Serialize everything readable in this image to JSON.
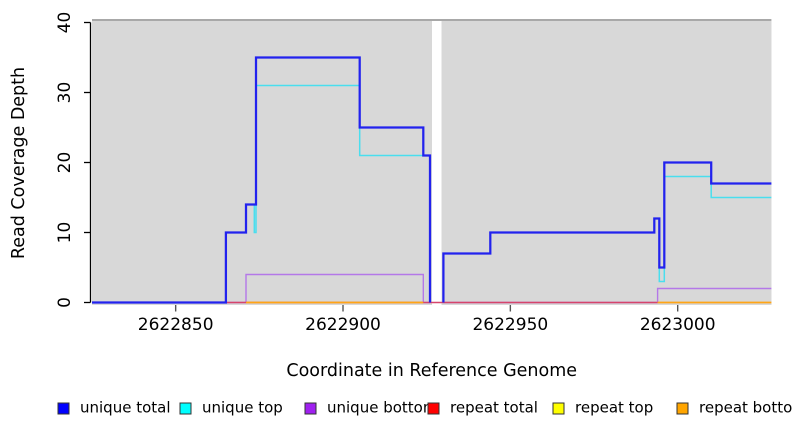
{
  "figure": {
    "background": "#FFFFFF"
  },
  "chart_data": {
    "type": "line",
    "subtype": "step-coverage-plot",
    "title": "",
    "xlabel": "Coordinate in Reference Genome",
    "ylabel": "Read Coverage Depth",
    "xlim": [
      2622825,
      2623028
    ],
    "ylim": [
      0,
      40
    ],
    "x_ticks": [
      2622850,
      2622900,
      2622950,
      2623000
    ],
    "y_ticks": [
      0,
      10,
      20,
      30,
      40
    ],
    "grid": false,
    "panel_background": "#D8D8D8",
    "panel_top_edge_color": "#A8A8A8",
    "gap": {
      "start": 2622926.6,
      "end": 2622929.4
    },
    "legend_position": "bottom",
    "series": [
      {
        "name": "unique total",
        "line_color": "#2222EE",
        "legend_color": "#0000FF",
        "line_width": 2.25,
        "segments": [
          [
            [
              2622825,
              0
            ],
            [
              2622865,
              0
            ],
            [
              2622865,
              10
            ],
            [
              2622871,
              10
            ],
            [
              2622871,
              14
            ],
            [
              2622874,
              14
            ],
            [
              2622874,
              35
            ],
            [
              2622905,
              35
            ],
            [
              2622905,
              25
            ],
            [
              2622924,
              25
            ],
            [
              2622924,
              21
            ],
            [
              2622926,
              21
            ],
            [
              2622926,
              0
            ]
          ],
          [
            [
              2622930,
              0
            ],
            [
              2622930,
              7
            ],
            [
              2622944,
              7
            ],
            [
              2622944,
              10
            ],
            [
              2622993,
              10
            ],
            [
              2622993,
              12
            ],
            [
              2622994.5,
              12
            ],
            [
              2622994.5,
              5
            ],
            [
              2622996,
              5
            ],
            [
              2622996,
              20
            ],
            [
              2623010,
              20
            ],
            [
              2623010,
              17
            ],
            [
              2623028,
              17
            ]
          ]
        ]
      },
      {
        "name": "unique top",
        "line_color": "#4ADEEE",
        "legend_color": "#00FFFF",
        "line_width": 1.5,
        "segments": [
          [
            [
              2622825,
              0
            ],
            [
              2622865,
              0
            ],
            [
              2622865,
              10
            ],
            [
              2622871,
              10
            ],
            [
              2622871,
              14
            ],
            [
              2622873.5,
              14
            ],
            [
              2622873.5,
              10
            ],
            [
              2622874,
              10
            ],
            [
              2622874,
              31
            ],
            [
              2622905,
              31
            ],
            [
              2622905,
              21
            ],
            [
              2622926,
              21
            ],
            [
              2622926,
              0
            ]
          ],
          [
            [
              2622930,
              0
            ],
            [
              2622930,
              7
            ],
            [
              2622944,
              7
            ],
            [
              2622944,
              10
            ],
            [
              2622993,
              10
            ],
            [
              2622993,
              12
            ],
            [
              2622994.5,
              12
            ],
            [
              2622994.5,
              3
            ],
            [
              2622996,
              3
            ],
            [
              2622996,
              18
            ],
            [
              2623010,
              18
            ],
            [
              2623010,
              15
            ],
            [
              2623028,
              15
            ]
          ]
        ]
      },
      {
        "name": "unique bottom",
        "line_color": "#B478E8",
        "legend_color": "#A020F0",
        "line_width": 1.4,
        "segments": [
          [
            [
              2622825,
              0
            ],
            [
              2622871,
              0
            ],
            [
              2622871,
              4
            ],
            [
              2622924,
              4
            ],
            [
              2622924,
              0
            ],
            [
              2622926,
              0
            ]
          ],
          [
            [
              2622930,
              0
            ],
            [
              2622994,
              0
            ],
            [
              2622994,
              2
            ],
            [
              2623028,
              2
            ]
          ]
        ]
      },
      {
        "name": "repeat total",
        "line_color": "#D6456B",
        "legend_color": "#FF0000",
        "line_width": 1.5,
        "segments": [
          [
            [
              2622865,
              0
            ],
            [
              2622994,
              0
            ]
          ]
        ]
      },
      {
        "name": "repeat top",
        "line_color": "#FFFF00",
        "legend_color": "#FFFF00",
        "line_width": 1.4,
        "segments": []
      },
      {
        "name": "repeat bottom",
        "line_color": "#FFA516",
        "legend_color": "#FFA500",
        "line_width": 1.8,
        "segments": [
          [
            [
              2622871,
              0
            ],
            [
              2622924,
              0
            ]
          ],
          [
            [
              2622994,
              0
            ],
            [
              2623028,
              0
            ]
          ]
        ]
      }
    ],
    "draw_order": [
      "unique bottom",
      "repeat total",
      "repeat bottom",
      "unique top",
      "unique total"
    ]
  }
}
